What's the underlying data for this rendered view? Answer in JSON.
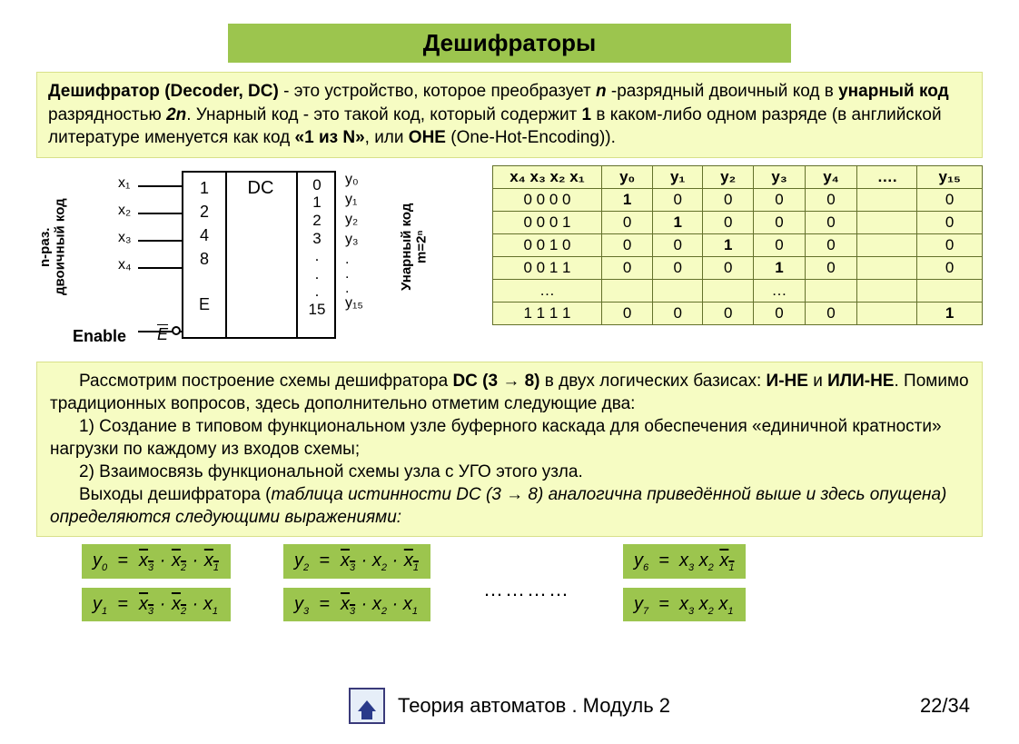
{
  "title": "Дешифраторы",
  "definition": "Дешифратор (Decoder, DC) - это устройство, которое преобразует n -разрядный двоичный код в унарный код разрядностью 2n. Унарный код - это такой код, который содержит 1 в каком-либо одном разряде (в английской литературе именуется как  код «1 из N», или OHE (One-Hot-Encoding)).",
  "diagram": {
    "in_label": "n-раз. двоичный код",
    "out_label": "Унарный код m=2ⁿ",
    "enable": "Enable",
    "dc": "DC",
    "left_pins": [
      "1",
      "2",
      "4",
      "8",
      "",
      "E"
    ],
    "right_pins": [
      "0",
      "1",
      "2",
      "3",
      ".",
      ".",
      ".",
      "15"
    ],
    "x": [
      "x₁",
      "x₂",
      "x₃",
      "x₄"
    ],
    "y_top": [
      "y₀",
      "y₁",
      "y₂",
      "y₃"
    ],
    "y_last": "y₁₅",
    "e_bar_label": "E"
  },
  "table": {
    "xhdr": "x₄ x₃ x₂ x₁",
    "yhdr": [
      "y₀",
      "y₁",
      "y₂",
      "y₃",
      "y₄",
      "….",
      "y₁₅"
    ],
    "rows": [
      {
        "x": "0 0 0 0",
        "y": [
          "1",
          "0",
          "0",
          "0",
          "0",
          "",
          "0"
        ]
      },
      {
        "x": "0 0 0 1",
        "y": [
          "0",
          "1",
          "0",
          "0",
          "0",
          "",
          "0"
        ]
      },
      {
        "x": "0 0 1 0",
        "y": [
          "0",
          "0",
          "1",
          "0",
          "0",
          "",
          "0"
        ]
      },
      {
        "x": "0 0 1 1",
        "y": [
          "0",
          "0",
          "0",
          "1",
          "0",
          "",
          "0"
        ]
      },
      {
        "x": "…",
        "y": [
          "",
          "",
          "",
          "…",
          "",
          "",
          ""
        ]
      },
      {
        "x": "1 1 1 1",
        "y": [
          "0",
          "0",
          "0",
          "0",
          "0",
          "",
          "1"
        ]
      }
    ]
  },
  "explain": {
    "p1a": "Рассмотрим построение схемы дешифратора ",
    "p1b": "DC (3 → 8)",
    "p1c": " в двух логических базисах: ",
    "p1d": "И-НЕ",
    "p1e": " и ",
    "p1f": "ИЛИ-НЕ",
    "p1g": ". Помимо традиционных вопросов, здесь дополнительно отметим следующие два:",
    "p2": "1) Создание в типовом функциональном узле буферного каскада для обеспечения «единичной кратности» нагрузки по каждому из входов схемы;",
    "p3": "2) Взаимосвязь функциональной схемы узла с УГО этого узла.",
    "p4a": "Выходы дешифратора (",
    "p4b": "таблица истинности DC (3 → 8)",
    "p4c": " аналогична приведённой выше и здесь опущена) определяются следующими выражениями:"
  },
  "dots": "…………",
  "footer": {
    "module": "Теория автоматов . Модуль 2",
    "page": "22/34"
  },
  "colors": {
    "accent": "#9cc54e",
    "panel": "#f6fcc3"
  }
}
